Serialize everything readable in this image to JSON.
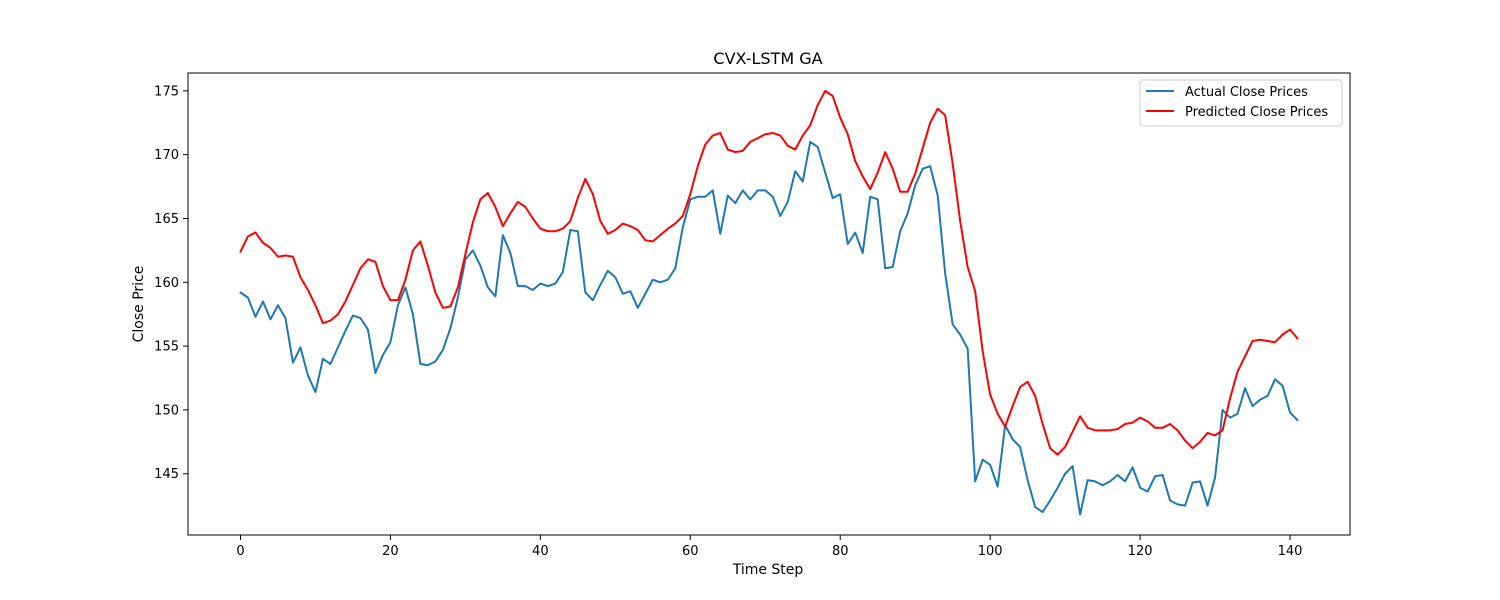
{
  "chart_data": {
    "type": "line",
    "title": "CVX-LSTM GA",
    "xlabel": "Time Step",
    "ylabel": "Close Price",
    "xlim": [
      -7,
      148
    ],
    "ylim": [
      140.2,
      176.4
    ],
    "xticks": [
      0,
      20,
      40,
      60,
      80,
      100,
      120,
      140
    ],
    "yticks": [
      145,
      150,
      155,
      160,
      165,
      170,
      175
    ],
    "grid": false,
    "legend_position": "top-right",
    "series": [
      {
        "name": "Actual Close Prices",
        "color": "#1f77b4",
        "values": [
          159.2,
          158.8,
          157.3,
          158.5,
          157.1,
          158.2,
          157.2,
          153.7,
          154.9,
          152.7,
          151.4,
          154.0,
          153.6,
          154.9,
          156.2,
          157.4,
          157.2,
          156.3,
          152.9,
          154.3,
          155.3,
          158.2,
          159.6,
          157.5,
          153.6,
          153.5,
          153.8,
          154.7,
          156.4,
          158.8,
          161.8,
          162.5,
          161.3,
          159.6,
          158.9,
          163.7,
          162.3,
          159.7,
          159.7,
          159.4,
          159.9,
          159.7,
          159.9,
          160.8,
          164.1,
          164.0,
          159.2,
          158.6,
          159.8,
          160.9,
          160.4,
          159.1,
          159.3,
          158.0,
          159.1,
          160.2,
          160.0,
          160.2,
          161.1,
          164.3,
          166.5,
          166.7,
          166.7,
          167.2,
          163.8,
          166.8,
          166.2,
          167.2,
          166.5,
          167.2,
          167.2,
          166.7,
          165.2,
          166.3,
          168.7,
          167.9,
          171.0,
          170.6,
          168.6,
          166.6,
          166.9,
          163.0,
          163.9,
          162.3,
          166.7,
          166.5,
          161.1,
          161.2,
          164.0,
          165.4,
          167.6,
          168.9,
          169.1,
          166.8,
          160.7,
          156.7,
          155.9,
          154.8,
          144.4,
          146.1,
          145.7,
          144.0,
          148.8,
          147.7,
          147.1,
          144.5,
          142.4,
          142.0,
          142.9,
          143.9,
          145.0,
          145.6,
          141.8,
          144.5,
          144.4,
          144.1,
          144.4,
          144.9,
          144.4,
          145.5,
          143.9,
          143.6,
          144.8,
          144.9,
          142.9,
          142.6,
          142.5,
          144.3,
          144.4,
          142.5,
          144.7,
          150.0,
          149.4,
          149.7,
          151.7,
          150.3,
          150.8,
          151.1,
          152.4,
          151.9,
          149.8,
          149.2
        ]
      },
      {
        "name": "Predicted Close Prices",
        "color": "#ff0000",
        "values": [
          162.4,
          163.6,
          163.9,
          163.1,
          162.7,
          162.0,
          162.1,
          162.0,
          160.4,
          159.4,
          158.2,
          156.8,
          157.0,
          157.5,
          158.5,
          159.8,
          161.1,
          161.8,
          161.6,
          159.7,
          158.6,
          158.6,
          160.2,
          162.5,
          163.2,
          161.3,
          159.2,
          158.0,
          158.1,
          159.6,
          162.2,
          164.7,
          166.5,
          167.0,
          165.9,
          164.4,
          165.4,
          166.3,
          165.9,
          165.0,
          164.2,
          164.0,
          164.0,
          164.2,
          164.8,
          166.6,
          168.1,
          166.9,
          164.8,
          163.8,
          164.1,
          164.6,
          164.4,
          164.1,
          163.3,
          163.2,
          163.7,
          164.2,
          164.6,
          165.2,
          166.9,
          169.1,
          170.8,
          171.5,
          171.7,
          170.4,
          170.2,
          170.3,
          171.0,
          171.3,
          171.6,
          171.7,
          171.5,
          170.7,
          170.4,
          171.5,
          172.3,
          173.9,
          175.0,
          174.6,
          172.9,
          171.6,
          169.5,
          168.3,
          167.3,
          168.6,
          170.2,
          168.9,
          167.1,
          167.1,
          168.5,
          170.5,
          172.5,
          173.6,
          173.1,
          169.3,
          164.8,
          161.2,
          159.3,
          154.6,
          151.2,
          149.7,
          148.7,
          150.3,
          151.8,
          152.2,
          151.1,
          148.9,
          147.0,
          146.5,
          147.1,
          148.3,
          149.5,
          148.6,
          148.4,
          148.4,
          148.4,
          148.5,
          148.9,
          149.0,
          149.4,
          149.1,
          148.6,
          148.6,
          148.9,
          148.4,
          147.6,
          147.0,
          147.5,
          148.2,
          148.0,
          148.4,
          150.9,
          153.0,
          154.2,
          155.4,
          155.5,
          155.4,
          155.3,
          155.9,
          156.3,
          155.6
        ]
      }
    ]
  }
}
